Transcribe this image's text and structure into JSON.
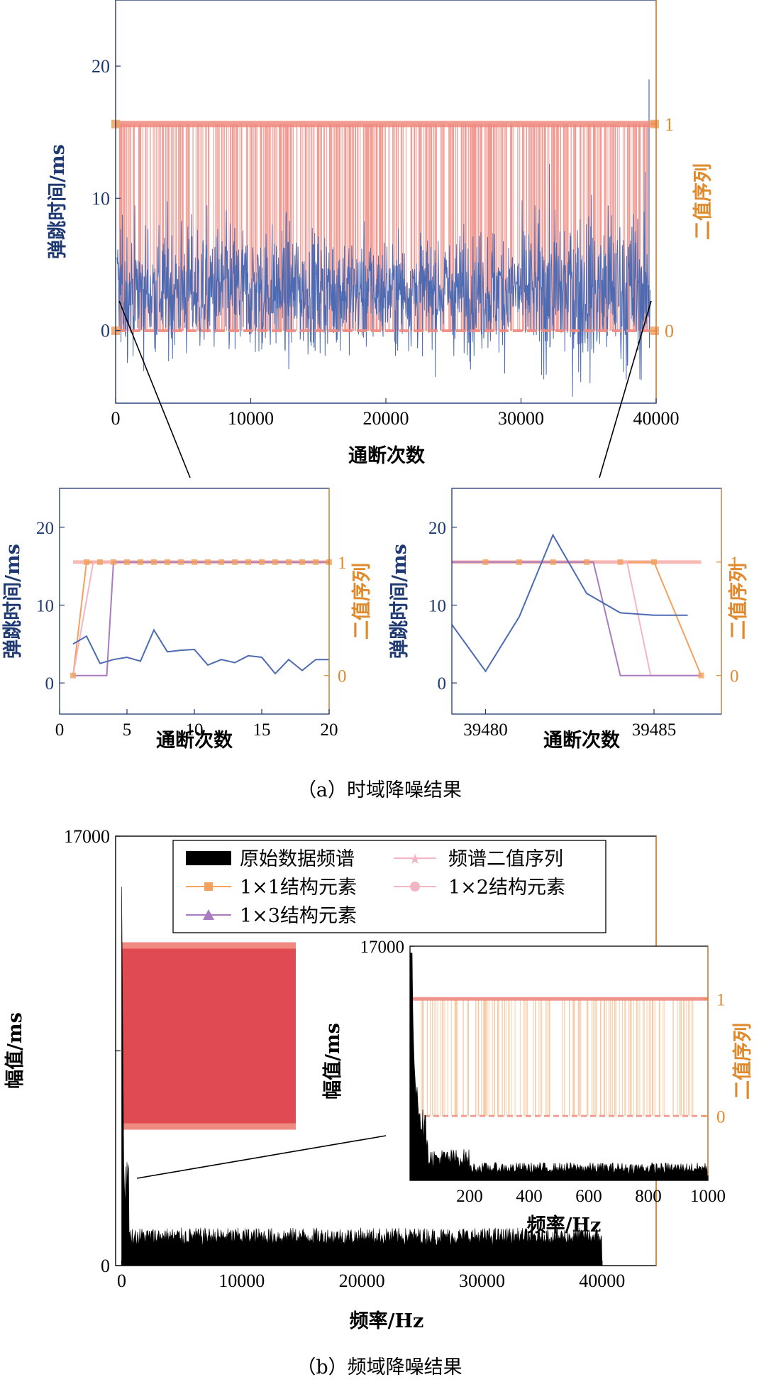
{
  "colors": {
    "blue": "#4d6bb3",
    "orange": "#f2a15e",
    "salmon": "#f08a80",
    "pink": "#f4b6c2",
    "purple": "#a97bbf",
    "red_fill": "#e04a52",
    "black": "#000000",
    "axis_dark": "#1f3a73",
    "axis_orange": "#e08a2e"
  },
  "captions": {
    "a": "（a）时域降噪结果",
    "b": "（b）频域降噪结果"
  },
  "chart_data": [
    {
      "id": "a-main",
      "type": "line",
      "xlabel": "通断次数",
      "ylabel": "弹跳时间/ms",
      "y2label": "二值序列",
      "xlim": [
        0,
        40000
      ],
      "ylim": [
        -5.5,
        25
      ],
      "y2lim": [
        -0.35,
        1.6
      ],
      "xticks": [
        0,
        10000,
        20000,
        30000,
        40000
      ],
      "yticks": [
        0,
        10,
        20
      ],
      "y2ticks": [
        0,
        1
      ],
      "series": [
        {
          "kind": "noisy-signal",
          "points": 40000,
          "baseline_ms": 3,
          "typical_range_ms": [
            -2,
            10
          ],
          "extreme_max_ms": 19
        },
        {
          "kind": "binary-sequence",
          "values": [
            0,
            1
          ]
        }
      ]
    },
    {
      "id": "a-zoom-left",
      "type": "line",
      "xlabel": "通断次数",
      "ylabel": "弹跳时间/ms",
      "y2label": "二值序列",
      "xlim": [
        0,
        20
      ],
      "ylim": [
        -4,
        25
      ],
      "y2lim": [
        -0.34,
        1.65
      ],
      "xticks": [
        0,
        5,
        10,
        15,
        20
      ],
      "yticks": [
        0,
        10,
        20
      ],
      "y2ticks": [
        0,
        1
      ],
      "signal": {
        "x": [
          1,
          2,
          3,
          4,
          5,
          6,
          7,
          8,
          9,
          10,
          11,
          12,
          13,
          14,
          15,
          16,
          17,
          18,
          19,
          20
        ],
        "y": [
          5,
          6,
          2.5,
          3,
          3.3,
          2.8,
          6.8,
          4,
          4.2,
          4.3,
          2.3,
          3,
          2.6,
          3.5,
          3.3,
          1.2,
          3,
          1.6,
          3,
          3
        ]
      },
      "binary": [
        {
          "x": [
            1,
            2,
            20
          ],
          "y": [
            0,
            1,
            1
          ]
        },
        {
          "x": [
            1,
            2.5,
            20
          ],
          "y": [
            0,
            1,
            1
          ]
        },
        {
          "x": [
            1,
            3.5,
            4,
            20
          ],
          "y": [
            0,
            0,
            1,
            1
          ]
        },
        {
          "x": [
            1,
            20
          ],
          "y": [
            1,
            1
          ]
        }
      ]
    },
    {
      "id": "a-zoom-right",
      "type": "line",
      "xlabel": "通断次数",
      "ylabel": "弹跳时间/ms",
      "y2label": "二值序列",
      "xlim": [
        39479,
        39487
      ],
      "ylim": [
        -4,
        25
      ],
      "y2lim": [
        -0.34,
        1.65
      ],
      "xticks": [
        39480,
        39485
      ],
      "yticks": [
        0,
        10,
        20
      ],
      "y2ticks": [
        0,
        1
      ],
      "signal": {
        "x": [
          39479,
          39480,
          39481,
          39482,
          39483,
          39484,
          39485,
          39486
        ],
        "y": [
          7.5,
          1.5,
          8.5,
          19,
          11.5,
          9,
          8.7,
          8.7
        ]
      },
      "binary": [
        {
          "x": [
            39479,
            39485,
            39486.4
          ],
          "y": [
            1,
            1,
            0
          ]
        },
        {
          "x": [
            39479,
            39484.2,
            39484.9,
            39486.4
          ],
          "y": [
            1,
            1,
            0,
            0
          ]
        },
        {
          "x": [
            39479,
            39483.2,
            39484,
            39486.4
          ],
          "y": [
            1,
            1,
            0,
            0
          ]
        },
        {
          "x": [
            39479,
            39486.4
          ],
          "y": [
            1,
            1
          ]
        }
      ]
    },
    {
      "id": "b-main",
      "type": "area",
      "xlabel": "频率/Hz",
      "ylabel": "幅值/ms",
      "xlim": [
        -500,
        44500
      ],
      "ylim": [
        0,
        17000
      ],
      "xticks": [
        0,
        10000,
        20000,
        30000,
        40000
      ],
      "yticks": [
        0,
        17000
      ],
      "series": [
        {
          "kind": "spectrum",
          "peak_at_0": 15000,
          "noise_floor": 1200
        }
      ],
      "legend": {
        "position": "top",
        "entries": [
          "原始数据频谱",
          "频谱二值序列",
          "1×1结构元素",
          "1×2结构元素",
          "1×3结构元素"
        ]
      }
    },
    {
      "id": "b-zoom",
      "type": "area",
      "xlabel": "频率/Hz",
      "ylabel": "幅值/ms",
      "y2label": "二值序列",
      "xlim": [
        0,
        1000
      ],
      "ylim": [
        0,
        17000
      ],
      "y2lim": [
        -0.55,
        1.45
      ],
      "xticks": [
        200,
        400,
        600,
        800,
        1000
      ],
      "yticks": [
        17000
      ],
      "y2ticks": [
        0,
        1
      ],
      "series": [
        {
          "kind": "spectrum",
          "peak_at_0": 17000,
          "noise_floor": 800
        },
        {
          "kind": "binary-sequence",
          "values": [
            0,
            1
          ]
        }
      ]
    }
  ]
}
